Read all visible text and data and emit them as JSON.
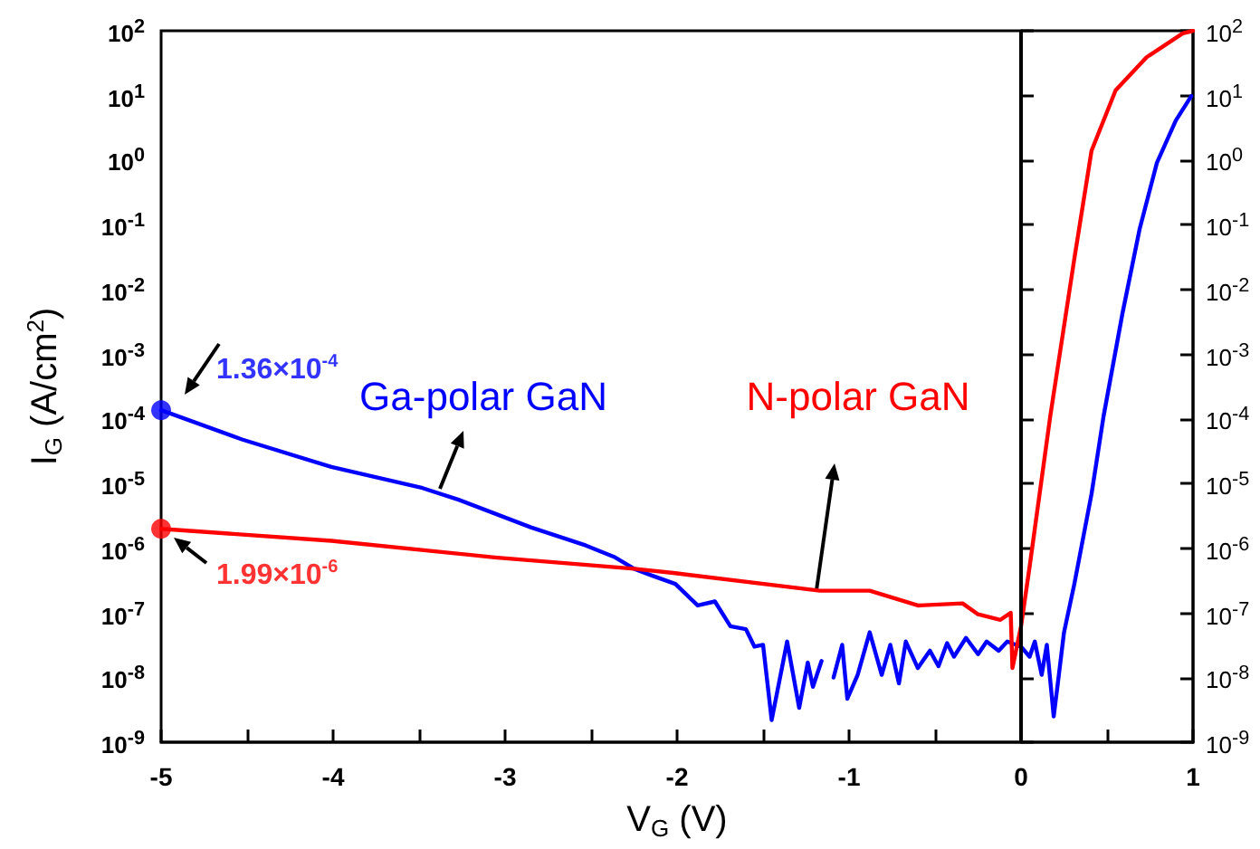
{
  "chart_data": {
    "type": "line",
    "xlabel": "V$_{G}$ (V)",
    "ylabel": "I$_{G}$ (A/cm$^{2}$)",
    "log": "y",
    "grid": false,
    "legend": false,
    "marker": "none",
    "line_style": "solid",
    "xlim": [
      -5,
      1
    ],
    "xticks": [
      -5,
      {
        "value": -4.5,
        "label": null
      },
      -4,
      {
        "value": -3.5,
        "label": null
      },
      -3,
      {
        "value": -2.5,
        "label": null
      },
      -2,
      {
        "value": -1.5,
        "label": null
      },
      -1,
      {
        "value": -0.5,
        "label": null
      },
      0,
      {
        "value": 0.5,
        "label": null
      },
      1
    ],
    "ylim": [
      1e-09,
      100
    ],
    "yticks": [
      {
        "value": 1e-09,
        "label": "10$^{-9}$"
      },
      {
        "value": 1e-08,
        "label": "10$^{-8}$"
      },
      {
        "value": 1e-07,
        "label": "10$^{-7}$"
      },
      {
        "value": 1e-06,
        "label": "10$^{-6}$"
      },
      {
        "value": 1e-05,
        "label": "10$^{-5}$"
      },
      {
        "value": 0.0001,
        "label": "10$^{-4}$"
      },
      {
        "value": 0.001,
        "label": "10$^{-3}$"
      },
      {
        "value": 0.01,
        "label": "10$^{-2}$"
      },
      {
        "value": 0.1,
        "label": "10$^{-1}$"
      },
      {
        "value": 1,
        "label": "10$^{0}$"
      },
      {
        "value": 10,
        "label": "10$^{1}$"
      },
      {
        "value": 100,
        "label": "10$^{2}$"
      }
    ],
    "ref_lines": [
      {
        "axis": "x",
        "value": 0,
        "color": "#000000"
      }
    ],
    "series": [
      {
        "name": "Ga-polar GaN",
        "color": "#0000ff",
        "x": [
          -5,
          -4.53,
          -4.01,
          -3.48,
          -3.27,
          -2.85,
          -2.53,
          -2.36,
          -2.25,
          -2.15,
          -2.01,
          -1.88,
          -1.78,
          -1.69,
          -1.6,
          -1.55,
          -1.5,
          -1.45,
          -1.36,
          -1.29,
          -1.24,
          -1.21,
          -1.16,
          -1.13,
          -1.09,
          -1.04,
          -1.01,
          -0.95,
          -0.88,
          -0.81,
          -0.76,
          -0.71,
          -0.67,
          -0.6,
          -0.53,
          -0.48,
          -0.43,
          -0.39,
          -0.32,
          -0.25,
          -0.2,
          -0.13,
          -0.08,
          0,
          0.05,
          0.08,
          0.12,
          0.15,
          0.19,
          0.22,
          0.25,
          0.31,
          0.41,
          0.48,
          0.59,
          0.69,
          0.79,
          0.9,
          0.99
        ],
        "values": [
          0.000136,
          4.8e-05,
          1.8e-05,
          8.5e-06,
          5.6e-06,
          2.1e-06,
          1.1e-06,
          7.2e-07,
          4.8e-07,
          3.8e-07,
          2.8e-07,
          1.3e-07,
          1.5e-07,
          6.2e-08,
          5.6e-08,
          3e-08,
          3.2e-08,
          2.2e-09,
          3.6e-08,
          3.4e-09,
          1.7e-08,
          7.2e-09,
          1.8e-08,
          null,
          1e-08,
          3.2e-08,
          4.7e-09,
          1.1e-08,
          5e-08,
          1.1e-08,
          3.2e-08,
          8.1e-09,
          3.6e-08,
          1.4e-08,
          2.6e-08,
          1.5e-08,
          3.4e-08,
          2.1e-08,
          4.1e-08,
          2.3e-08,
          3.6e-08,
          2.6e-08,
          3.6e-08,
          3e-08,
          2.1e-08,
          3.6e-08,
          1.1e-08,
          3.2e-08,
          2.5e-09,
          1.1e-08,
          5e-08,
          2.8e-07,
          6.9e-06,
          0.00011,
          0.0043,
          0.087,
          0.91,
          4.1,
          9.8
        ]
      },
      {
        "name": "N-polar GaN",
        "color": "#ff0000",
        "x": [
          -5,
          -4.01,
          -3.06,
          -2.25,
          -2.01,
          -1.17,
          -0.88,
          -0.6,
          -0.34,
          -0.25,
          -0.12,
          -0.06,
          -0.05,
          0,
          0.05,
          0.17,
          0.31,
          0.41,
          0.55,
          0.73,
          0.94,
          1
        ],
        "values": [
          1.99e-06,
          1.3e-06,
          7.2e-07,
          4.8e-07,
          4.1e-07,
          2.2e-07,
          2.2e-07,
          1.3e-07,
          1.4e-07,
          9.5e-08,
          7.8e-08,
          1e-07,
          1.4e-08,
          6.2e-08,
          5.2e-07,
          0.00011,
          0.03,
          1.4,
          12,
          39,
          91,
          100
        ]
      },
      {
        "type": "scatter",
        "marker": "circle",
        "color": "#0000ff",
        "x": [
          -5
        ],
        "values": [
          0.000136
        ],
        "value_labels": [
          "1.36×10$^{-4}$"
        ]
      },
      {
        "type": "scatter",
        "marker": "circle",
        "color": "#ff0000",
        "x": [
          -5
        ],
        "values": [
          1.99e-06
        ],
        "value_labels": [
          "1.99×10$^{-6}$"
        ]
      }
    ]
  }
}
